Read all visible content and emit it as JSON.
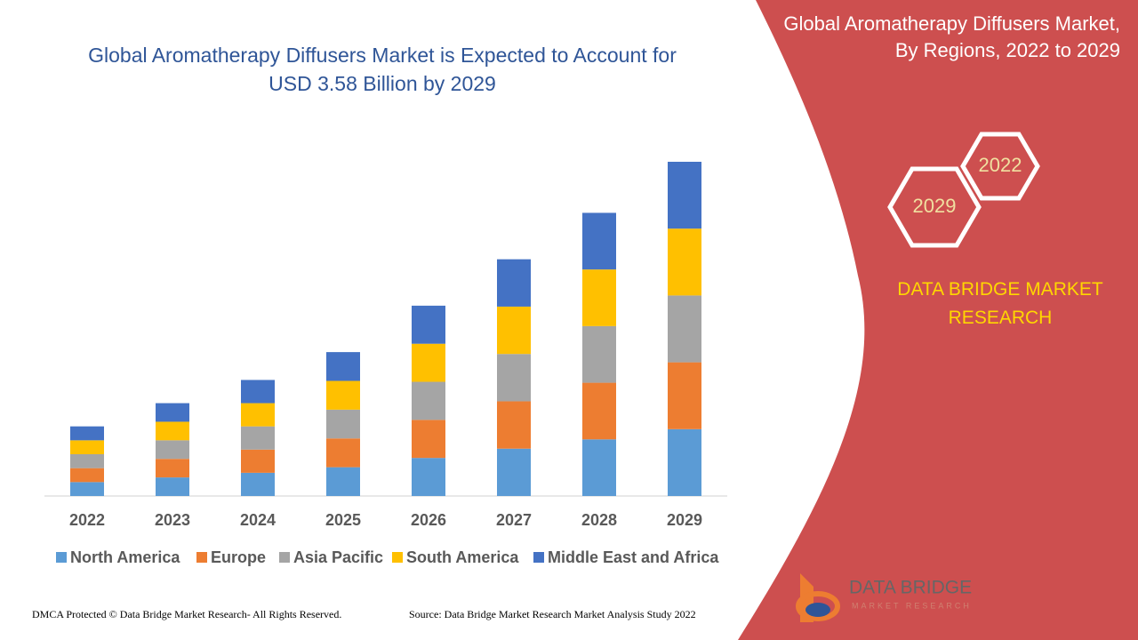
{
  "chart_data": {
    "type": "bar",
    "stacked": true,
    "title": "Global Aromatherapy Diffusers Market is Expected to Account for USD 3.58 Billion by 2029",
    "categories": [
      "2022",
      "2023",
      "2024",
      "2025",
      "2026",
      "2027",
      "2028",
      "2029"
    ],
    "series": [
      {
        "name": "North America",
        "color": "#5b9bd5",
        "values": [
          0.15,
          0.2,
          0.25,
          0.31,
          0.41,
          0.51,
          0.61,
          0.72
        ]
      },
      {
        "name": "Europe",
        "color": "#ed7d31",
        "values": [
          0.15,
          0.2,
          0.25,
          0.31,
          0.41,
          0.51,
          0.61,
          0.72
        ]
      },
      {
        "name": "Asia Pacific",
        "color": "#a5a5a5",
        "values": [
          0.15,
          0.2,
          0.25,
          0.31,
          0.41,
          0.51,
          0.61,
          0.72
        ]
      },
      {
        "name": "South America",
        "color": "#ffc000",
        "values": [
          0.15,
          0.2,
          0.25,
          0.31,
          0.41,
          0.51,
          0.61,
          0.72
        ]
      },
      {
        "name": "Middle East and Africa",
        "color": "#4472c4",
        "values": [
          0.15,
          0.2,
          0.25,
          0.31,
          0.41,
          0.51,
          0.61,
          0.72
        ]
      }
    ],
    "ylim": [
      0,
      3.6
    ],
    "legend": "bottom"
  },
  "panel": {
    "title": "Global Aromatherapy Diffusers Market, By Regions, 2022 to 2029",
    "hex_labels": [
      "2022",
      "2029"
    ],
    "brand": "DATA BRIDGE MARKET RESEARCH"
  },
  "logo": {
    "name": "DATA BRIDGE",
    "tagline": "MARKET RESEARCH"
  },
  "footer": {
    "copyright": "DMCA Protected © Data Bridge Market Research- All Rights Reserved.",
    "source": "Source: Data Bridge Market Research Market Analysis Study 2022"
  }
}
